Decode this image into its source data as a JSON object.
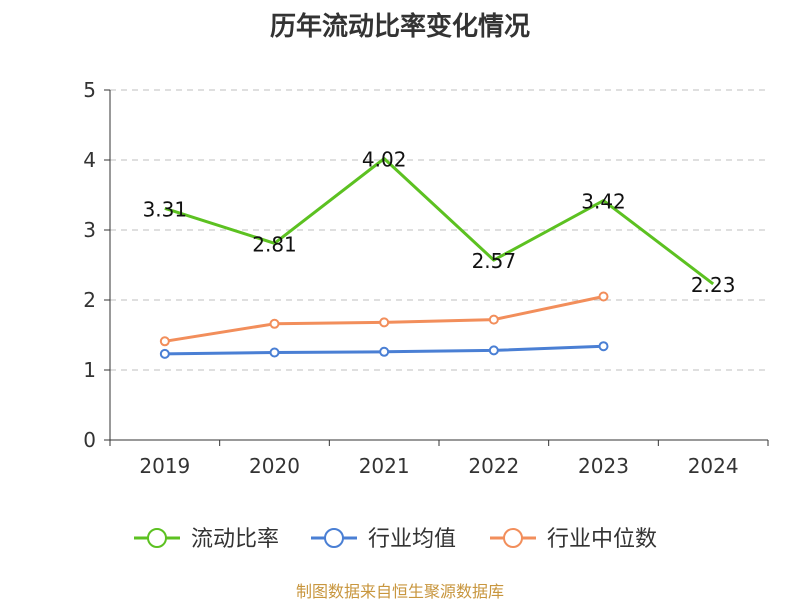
{
  "title": "历年流动比率变化情况",
  "source": "制图数据来自恒生聚源数据库",
  "chart_data": {
    "type": "line",
    "title": "历年流动比率变化情况",
    "xlabel": "",
    "ylabel": "",
    "categories": [
      "2019",
      "2020",
      "2021",
      "2022",
      "2023",
      "2024"
    ],
    "ylim": [
      0,
      5
    ],
    "yticks": [
      0,
      1,
      2,
      3,
      4,
      5
    ],
    "grid": true,
    "legend_position": "bottom",
    "series": [
      {
        "name": "流动比率",
        "color": "#5cc121",
        "values": [
          3.31,
          2.81,
          4.02,
          2.57,
          3.42,
          2.23
        ],
        "labels": [
          "3.31",
          "2.81",
          "4.02",
          "2.57",
          "3.42",
          "2.23"
        ],
        "show_labels": true
      },
      {
        "name": "行业均值",
        "color": "#4a7fd4",
        "values": [
          1.23,
          1.25,
          1.26,
          1.28,
          1.34,
          null
        ],
        "show_labels": false
      },
      {
        "name": "行业中位数",
        "color": "#f28e5b",
        "values": [
          1.41,
          1.66,
          1.68,
          1.72,
          2.05,
          null
        ],
        "show_labels": false
      }
    ]
  }
}
